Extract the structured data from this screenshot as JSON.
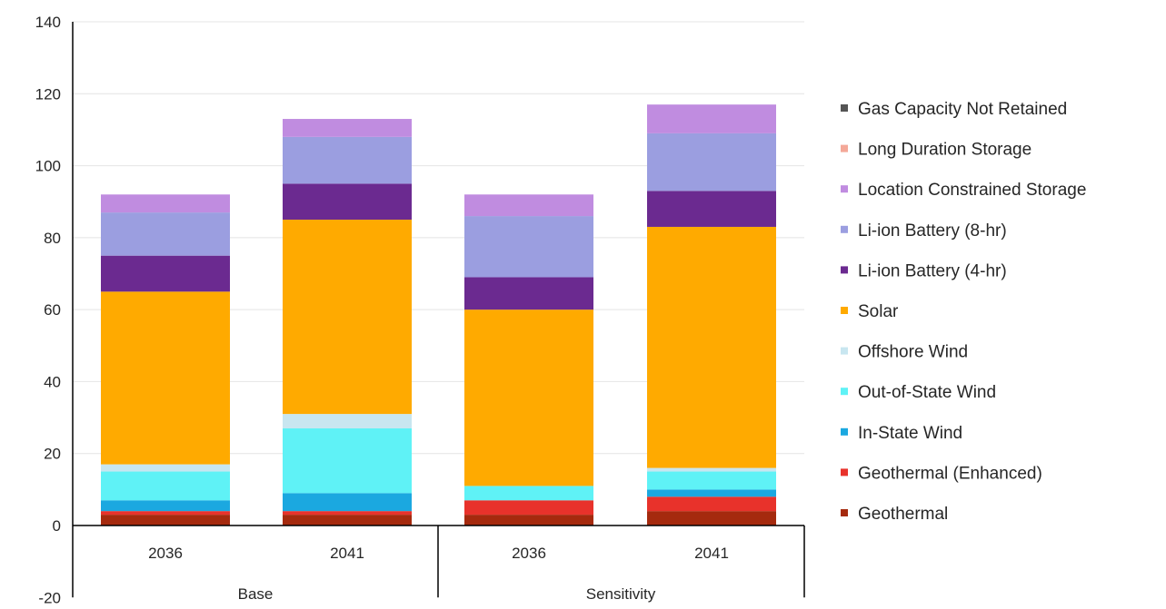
{
  "chart_data": {
    "type": "bar",
    "stacked": true,
    "title": "",
    "xlabel": "",
    "ylabel": "",
    "ylim": [
      -20,
      140
    ],
    "yticks": [
      -20,
      0,
      20,
      40,
      60,
      80,
      100,
      120,
      140
    ],
    "grid": true,
    "legend_position": "right",
    "groups": [
      {
        "label": "Base",
        "categories": [
          "2036",
          "2041"
        ]
      },
      {
        "label": "Sensitivity",
        "categories": [
          "2036",
          "2041"
        ]
      }
    ],
    "categories": [
      "2036",
      "2041",
      "2036",
      "2041"
    ],
    "series": [
      {
        "name": "Geothermal",
        "color": "#a52a0e",
        "values": [
          3,
          3,
          3,
          4
        ]
      },
      {
        "name": "Geothermal (Enhanced)",
        "color": "#e8322b",
        "values": [
          1,
          1,
          4,
          4
        ]
      },
      {
        "name": "In-State Wind",
        "color": "#1ba8e0",
        "values": [
          3,
          5,
          0,
          2
        ]
      },
      {
        "name": "Out-of-State Wind",
        "color": "#5ff2f6",
        "values": [
          8,
          18,
          4,
          5
        ]
      },
      {
        "name": "Offshore Wind",
        "color": "#c8e6f0",
        "values": [
          2,
          4,
          0,
          1
        ]
      },
      {
        "name": "Solar",
        "color": "#ffaa00",
        "values": [
          48,
          54,
          49,
          67
        ]
      },
      {
        "name": "Li-ion Battery (4-hr)",
        "color": "#6b2a90",
        "values": [
          10,
          10,
          9,
          10
        ]
      },
      {
        "name": "Li-ion Battery (8-hr)",
        "color": "#9b9ee0",
        "values": [
          12,
          13,
          17,
          16
        ]
      },
      {
        "name": "Location Constrained Storage",
        "color": "#c08ce0",
        "values": [
          5,
          5,
          6,
          8
        ]
      },
      {
        "name": "Long Duration Storage",
        "color": "#f4a898",
        "values": [
          0,
          0,
          0,
          0
        ]
      },
      {
        "name": "Gas Capacity Not Retained",
        "color": "#555555",
        "values": [
          0,
          0,
          0,
          0
        ]
      }
    ],
    "legend_order": [
      "Gas Capacity Not Retained",
      "Long Duration Storage",
      "Location Constrained Storage",
      "Li-ion Battery (8-hr)",
      "Li-ion Battery (4-hr)",
      "Solar",
      "Offshore Wind",
      "Out-of-State Wind",
      "In-State Wind",
      "Geothermal (Enhanced)",
      "Geothermal"
    ]
  }
}
